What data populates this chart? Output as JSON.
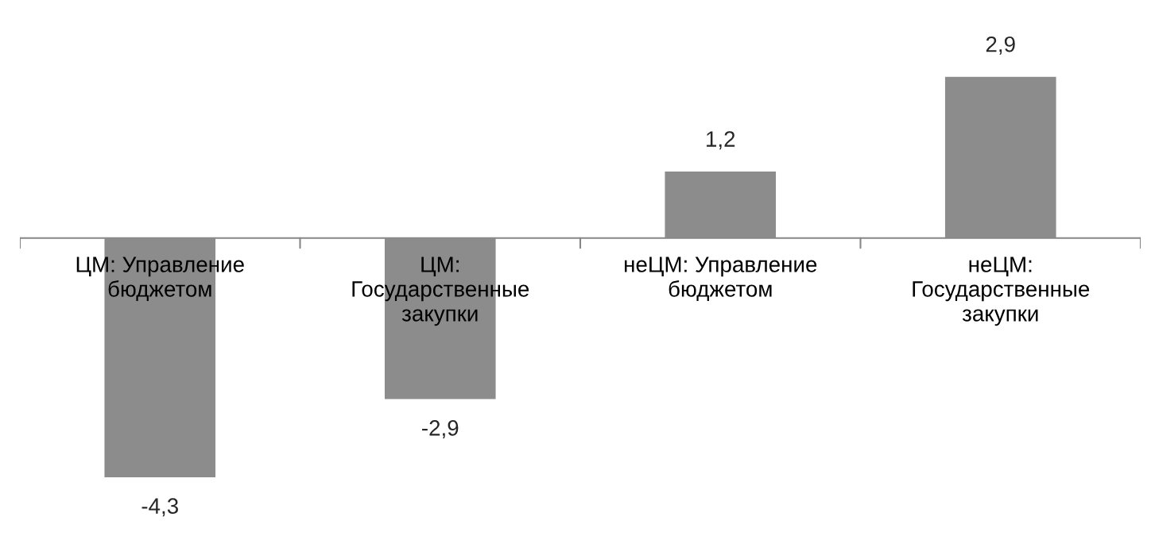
{
  "chart_data": {
    "type": "bar",
    "categories": [
      "ЦМ: Управление\nбюджетом",
      "ЦМ:\nГосударственные\nзакупки",
      "неЦМ: Управление\nбюджетом",
      "неЦМ:\nГосударственные\nзакупки"
    ],
    "values": [
      -4.3,
      -2.9,
      1.2,
      2.9
    ],
    "value_labels": [
      "-4,3",
      "-2,9",
      "1,2",
      "2,9"
    ],
    "color": "#8c8c8c"
  }
}
